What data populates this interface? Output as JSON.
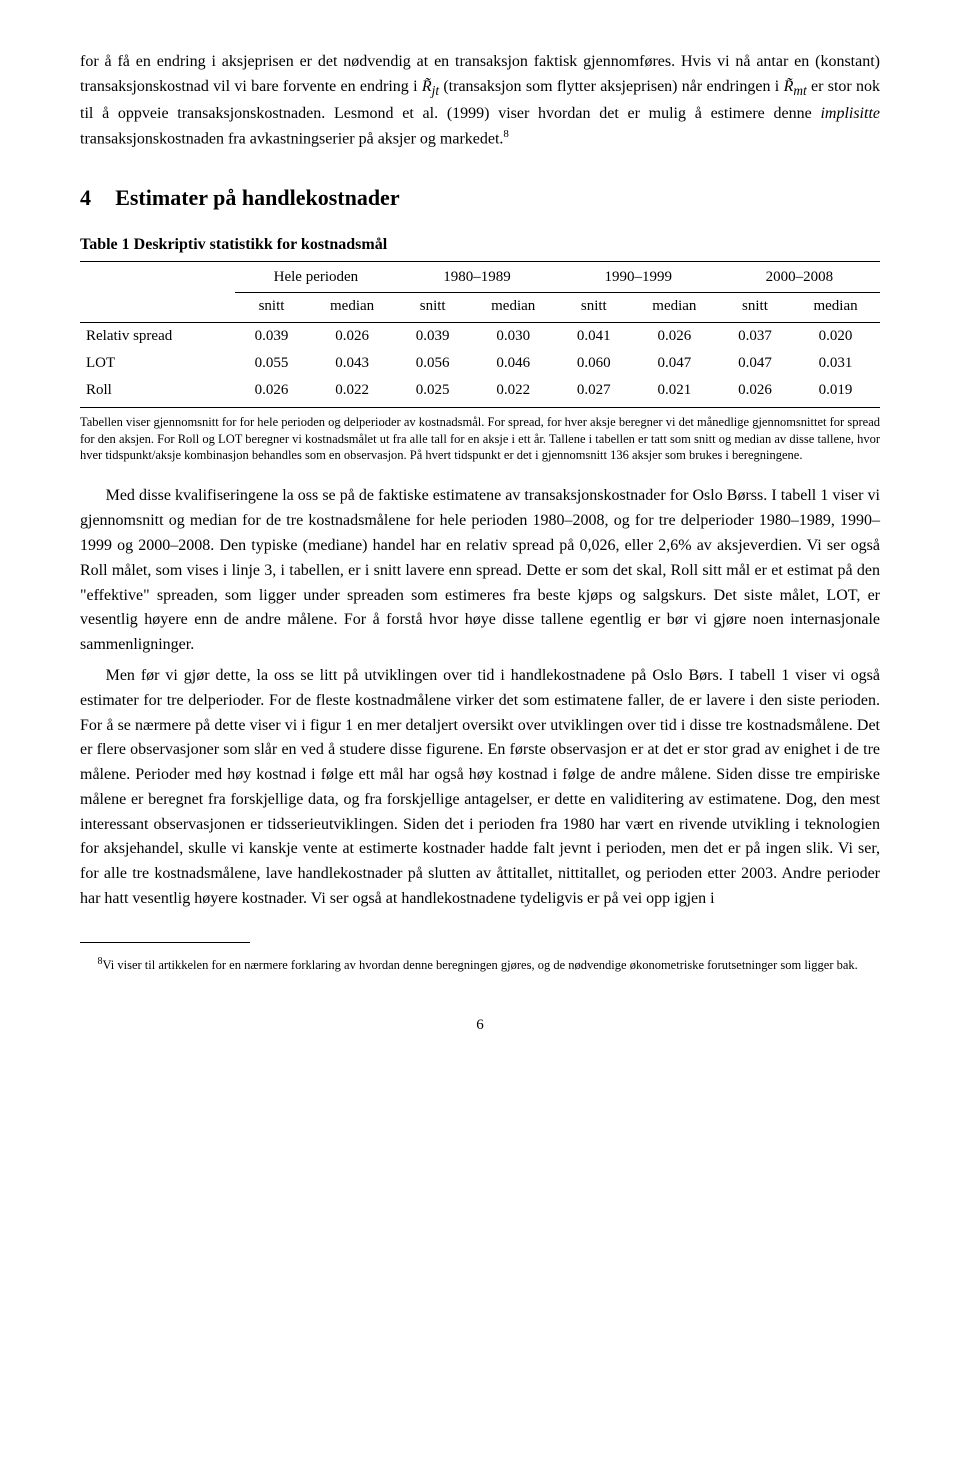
{
  "para1a": "for å få en endring i aksjeprisen er det nødvendig at en transaksjon faktisk gjennomføres. Hvis vi nå antar en (konstant) transaksjonskostnad vil vi bare forvente en endring i ",
  "para1b": " (transaksjon som flytter aksjeprisen) når endringen i ",
  "para1c": " er stor nok til å oppveie transaksjonskostnaden. Lesmond et al. (1999) viser hvordan det er mulig å estimere denne ",
  "para1d_italic": "implisitte",
  "para1e": " transaksjonskostnaden fra avkastningserier på aksjer og markedet.",
  "fn8_marker": "8",
  "section_num": "4",
  "section_title": "Estimater på handlekostnader",
  "table_label": "Table 1",
  "table_title_rest": " Deskriptiv statistikk for kostnadsmål",
  "table": {
    "group_headers": [
      "Hele perioden",
      "1980–1989",
      "1990–1999",
      "2000–2008"
    ],
    "sub_headers": [
      "snitt",
      "median",
      "snitt",
      "median",
      "snitt",
      "median",
      "snitt",
      "median"
    ],
    "rows": [
      {
        "label": "Relativ spread",
        "cells": [
          "0.039",
          "0.026",
          "0.039",
          "0.030",
          "0.041",
          "0.026",
          "0.037",
          "0.020"
        ]
      },
      {
        "label": "LOT",
        "cells": [
          "0.055",
          "0.043",
          "0.056",
          "0.046",
          "0.060",
          "0.047",
          "0.047",
          "0.031"
        ]
      },
      {
        "label": "Roll",
        "cells": [
          "0.026",
          "0.022",
          "0.025",
          "0.022",
          "0.027",
          "0.021",
          "0.026",
          "0.019"
        ]
      }
    ]
  },
  "table_caption": "Tabellen viser gjennomsnitt for for hele perioden og delperioder av kostnadsmål. For spread, for hver aksje beregner vi det månedlige gjennomsnittet for spread for den aksjen. For Roll og LOT beregner vi kostnadsmålet ut fra alle tall for en aksje i ett år. Tallene i tabellen er tatt som snitt og median av disse tallene, hvor hver tidspunkt/aksje kombinasjon behandles som en observasjon. På hvert tidspunkt er det i gjennomsnitt 136 aksjer som brukes i beregningene.",
  "para2": "Med disse kvalifiseringene la oss se på de faktiske estimatene av transaksjonskostnader for Oslo Børss. I tabell 1 viser vi gjennomsnitt og median for de tre kostnadsmålene for hele perioden 1980–2008, og for tre delperioder 1980–1989, 1990–1999 og 2000–2008. Den typiske (mediane) handel har en relativ spread på 0,026, eller 2,6% av aksjeverdien. Vi ser også Roll målet, som vises i linje 3, i tabellen, er i snitt lavere enn spread. Dette er som det skal, Roll sitt mål er et estimat på den \"effektive\" spreaden, som ligger under spreaden som estimeres fra beste kjøps og salgskurs. Det siste målet, LOT, er vesentlig høyere enn de andre målene. For å forstå hvor høye disse tallene egentlig er bør vi gjøre noen internasjonale sammenligninger.",
  "para3": "Men før vi gjør dette, la oss se litt på utviklingen over tid i handlekostnadene på Oslo Børs. I tabell 1 viser vi også estimater for tre delperioder. For de fleste kostnadmålene virker det som estimatene faller, de er lavere i den siste perioden. For å se nærmere på dette viser vi i figur 1 en mer detaljert oversikt over utviklingen over tid i disse tre kostnadsmålene. Det er flere observasjoner som slår en ved å studere disse figurene. En første observasjon er at det er stor grad av enighet i de tre målene. Perioder med høy kostnad i følge ett mål har også høy kostnad i følge de andre målene. Siden disse tre empiriske målene er beregnet fra forskjellige data, og fra forskjellige antagelser, er dette en validitering av estimatene. Dog, den mest interessant observasjonen er tidsserieutviklingen. Siden det i perioden fra 1980 har vært en rivende utvikling i teknologien for aksjehandel, skulle vi kanskje vente at estimerte kostnader hadde falt jevnt i perioden, men det er på ingen slik. Vi ser, for alle tre kostnadsmålene, lave handlekostnader på slutten av åttitallet, nittitallet, og perioden etter 2003. Andre perioder har hatt vesentlig høyere kostnader. Vi ser også at handlekostnadene tydeligvis er på vei opp igjen i",
  "footnote8": "Vi viser til artikkelen for en nærmere forklaring av hvordan denne beregningen gjøres, og de nødvendige økonometriske forutsetninger som ligger bak.",
  "page_number": "6"
}
